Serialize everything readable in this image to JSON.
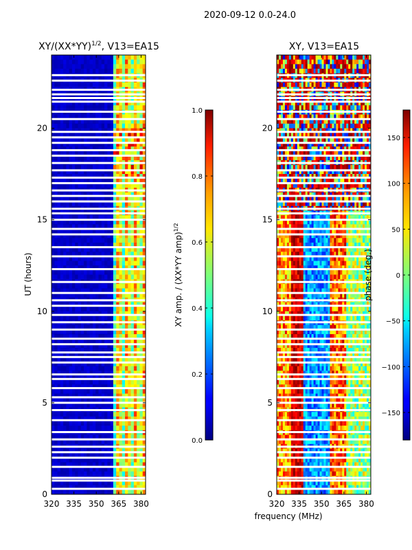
{
  "suptitle": "2020-09-12 0.0-24.0",
  "xlabel": "frequency (MHz)",
  "chart_data": [
    {
      "type": "heatmap",
      "title_main": "XY/(XX*YY)",
      "title_sup": "1/2",
      "title_tail": ", V13=EA15",
      "ylabel": "UT (hours)",
      "xlim": [
        320,
        383
      ],
      "ylim": [
        0,
        24
      ],
      "xticks": [
        "320",
        "335",
        "350",
        "365",
        "380"
      ],
      "xtick_values": [
        320,
        335,
        350,
        365,
        380
      ],
      "yticks": [
        "0",
        "5",
        "10",
        "15",
        "20"
      ],
      "ytick_values": [
        0,
        5,
        10,
        15,
        20
      ],
      "colorbar": {
        "label_main": "XY amp. / (XX*YY amp)",
        "label_sup": "1/2",
        "range": [
          0.0,
          1.0
        ],
        "ticks": [
          "0.0",
          "0.2",
          "0.4",
          "0.6",
          "0.8",
          "1.0"
        ],
        "tick_values": [
          0.0,
          0.2,
          0.4,
          0.6,
          0.8,
          1.0
        ],
        "colormap": "jet"
      }
    },
    {
      "type": "heatmap",
      "title_main": "XY, V13=EA15",
      "ylabel": "",
      "xlim": [
        320,
        383
      ],
      "ylim": [
        0,
        24
      ],
      "xticks": [
        "320",
        "335",
        "350",
        "365",
        "380"
      ],
      "xtick_values": [
        320,
        335,
        350,
        365,
        380
      ],
      "yticks": [
        "0",
        "5",
        "10",
        "15",
        "20"
      ],
      "ytick_values": [
        0,
        5,
        10,
        15,
        20
      ],
      "colorbar": {
        "label_main": "phase (deg.)",
        "range": [
          -180,
          180
        ],
        "ticks": [
          "−150",
          "−100",
          "−50",
          "0",
          "50",
          "100",
          "150"
        ],
        "tick_values": [
          -150,
          -100,
          -50,
          0,
          50,
          100,
          150
        ],
        "colormap": "jet"
      }
    }
  ],
  "flagged_gaps_ut": [
    0.3,
    0.75,
    0.9,
    1.5,
    2.0,
    2.3,
    2.6,
    3.0,
    3.4,
    4.05,
    4.6,
    5.0,
    5.3,
    5.8,
    6.3,
    6.55,
    7.2,
    7.5,
    7.75,
    8.2,
    8.5,
    9.0,
    9.4,
    9.8,
    10.3,
    10.6,
    11.0,
    11.6,
    12.3,
    13.0,
    13.5,
    14.2,
    14.5,
    15.0,
    15.35,
    15.6,
    16.0,
    16.3,
    16.6,
    17.0,
    17.3,
    17.7,
    18.1,
    18.5,
    18.8,
    19.2,
    19.5,
    19.8,
    20.5,
    20.9,
    21.45,
    21.65,
    21.85,
    22.1,
    22.6,
    22.9
  ]
}
